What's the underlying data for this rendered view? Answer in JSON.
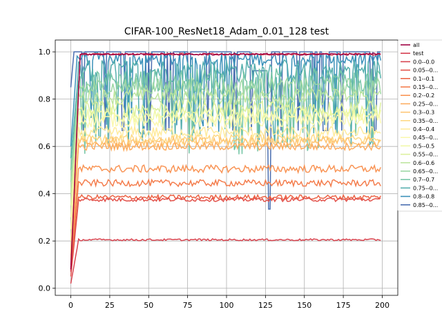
{
  "chart_data": {
    "type": "line",
    "title": "CIFAR-100_ResNet18_Adam_0.01_128 test",
    "xlabel": "",
    "ylabel": "",
    "xlim": [
      -10,
      210
    ],
    "ylim": [
      -0.03,
      1.05
    ],
    "xticks": [
      0,
      25,
      50,
      75,
      100,
      125,
      150,
      175,
      200
    ],
    "yticks": [
      0.0,
      0.2,
      0.4,
      0.6,
      0.8,
      1.0
    ],
    "grid": true,
    "legend_position": "right (partly cut off)",
    "epochs": 200,
    "series": [
      {
        "name": "all",
        "color": "#9e0142",
        "level": 0.99,
        "noise": 0.004,
        "start": 0.08,
        "rise": 6,
        "kind": "smooth"
      },
      {
        "name": "test",
        "color": "#d53e4f",
        "level": 0.99,
        "noise": 0.004,
        "start": 0.07,
        "rise": 6,
        "kind": "smooth"
      },
      {
        "name": "0.0--0.0",
        "color": "#d8434e",
        "level": 0.205,
        "noise": 0.004,
        "start": 0.02,
        "rise": 5,
        "kind": "smooth"
      },
      {
        "name": "0.05--0...",
        "color": "#e2514a",
        "level": 0.375,
        "noise": 0.008,
        "start": 0.05,
        "rise": 5,
        "kind": "smooth"
      },
      {
        "name": "0.1--0.1",
        "color": "#ec6446",
        "level": 0.385,
        "noise": 0.01,
        "start": 0.08,
        "rise": 5,
        "kind": "smooth"
      },
      {
        "name": "0.15--0...",
        "color": "#f47d4d",
        "level": 0.445,
        "noise": 0.014,
        "start": 0.09,
        "rise": 5,
        "kind": "smooth"
      },
      {
        "name": "0.2--0.2",
        "color": "#f99455",
        "level": 0.505,
        "noise": 0.016,
        "start": 0.1,
        "rise": 5,
        "kind": "smooth"
      },
      {
        "name": "0.25--0...",
        "color": "#fdad60",
        "level": 0.6,
        "noise": 0.016,
        "start": 0.12,
        "rise": 5,
        "kind": "smooth"
      },
      {
        "name": "0.3--0.3",
        "color": "#fec574",
        "level": 0.62,
        "noise": 0.02,
        "start": 0.14,
        "rise": 5,
        "kind": "smooth"
      },
      {
        "name": "0.35--0...",
        "color": "#fed985",
        "level": 0.63,
        "noise": 0.02,
        "start": 0.16,
        "rise": 5,
        "kind": "smooth"
      },
      {
        "name": "0.4--0.4",
        "color": "#ffeb9d",
        "level": 0.66,
        "noise": 0.025,
        "start": 0.2,
        "rise": 5,
        "kind": "smooth"
      },
      {
        "name": "0.45--0...",
        "color": "#fbf8b0",
        "level": 0.71,
        "noise": 0.03,
        "start": 0.25,
        "rise": 5,
        "kind": "smooth"
      },
      {
        "name": "0.5--0.5",
        "color": "#f0f9a7",
        "level": 0.73,
        "noise": 0.03,
        "start": 0.3,
        "rise": 5,
        "kind": "smooth"
      },
      {
        "name": "0.55--0...",
        "color": "#dcf09d",
        "level": 0.76,
        "noise": 0.035,
        "start": 0.35,
        "rise": 5,
        "kind": "smooth"
      },
      {
        "name": "0.6--0.6",
        "color": "#bee5a0",
        "level": 0.81,
        "noise": 0.035,
        "start": 0.4,
        "rise": 5,
        "kind": "smooth"
      },
      {
        "name": "0.65--0...",
        "color": "#9dd7a4",
        "level": 0.85,
        "noise": 0.04,
        "start": 0.45,
        "rise": 5,
        "kind": "smooth"
      },
      {
        "name": "0.7--0.7",
        "color": "#77c6a7",
        "level": 0.88,
        "noise": 0.05,
        "start": 0.5,
        "rise": 5,
        "kind": "spiky"
      },
      {
        "name": "0.75--0...",
        "color": "#54aead",
        "level": 0.92,
        "noise": 0.05,
        "start": 0.55,
        "rise": 5,
        "kind": "spiky"
      },
      {
        "name": "0.8--0.8",
        "color": "#3990b9",
        "level": 0.97,
        "noise": 0.03,
        "start": 0.6,
        "rise": 4,
        "kind": "spiky"
      },
      {
        "name": "0.85--0...",
        "color": "#4a6eb0",
        "level": 1.0,
        "noise": 0.0,
        "start": 0.85,
        "rise": 2,
        "kind": "binary",
        "drop_range": [
          117,
          128
        ],
        "drop_value": 0.92,
        "dip_at": 127,
        "dip_value": 0.335
      }
    ]
  }
}
